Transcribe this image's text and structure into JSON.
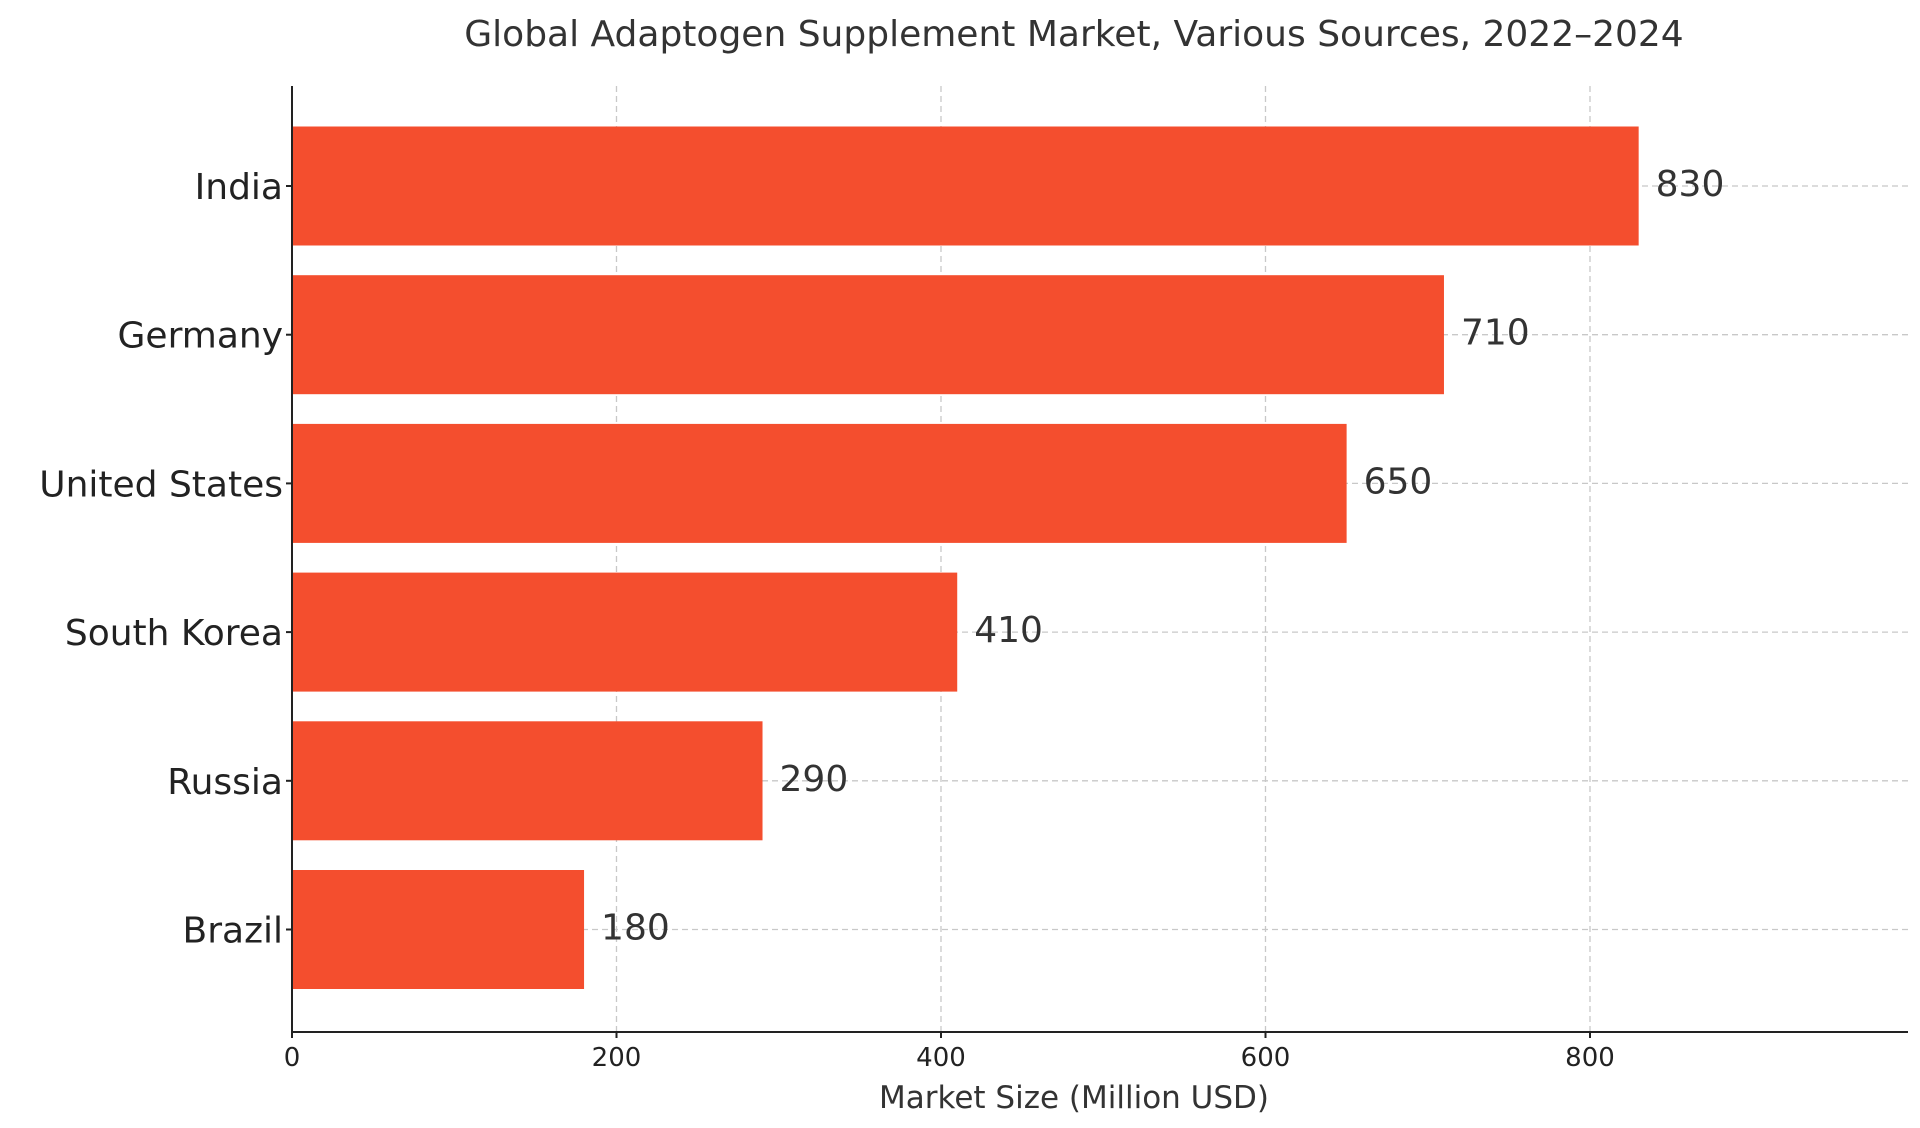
{
  "chart_data": {
    "type": "bar",
    "orientation": "horizontal",
    "title": "Global Adaptogen Supplement Market, Various Sources, 2022–2024",
    "xlabel": "Market Size (Million USD)",
    "ylabel": "",
    "categories": [
      "India",
      "Germany",
      "United States",
      "South Korea",
      "Russia",
      "Brazil"
    ],
    "values": [
      830,
      710,
      650,
      410,
      290,
      180
    ],
    "data_labels": [
      "830",
      "710",
      "650",
      "410",
      "290",
      "180"
    ],
    "xlim": [
      0,
      996
    ],
    "xticks": [
      0,
      200,
      400,
      600,
      800
    ],
    "xtick_labels": [
      "0",
      "200",
      "400",
      "600",
      "800"
    ],
    "grid": true,
    "bar_color": "#f44e2e",
    "legend": "none"
  }
}
